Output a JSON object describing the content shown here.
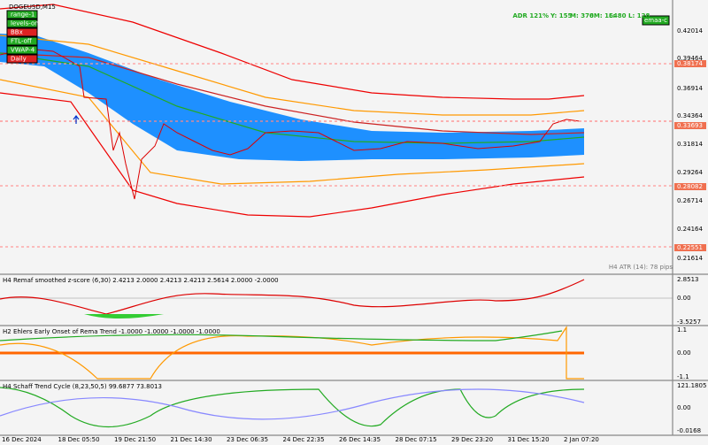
{
  "window": {
    "symbol": "DOGEUSD,M15"
  },
  "header": {
    "stats": [
      "ADR 121%",
      "Y: 155",
      "M: 370",
      "6M: 164",
      "L: 80",
      "L: 128"
    ],
    "right_button": "emaa-c"
  },
  "buttons": [
    "range-1",
    "levels-on",
    "BBx",
    "FTL-off",
    "VWAP-4",
    "Daily"
  ],
  "main_axis": {
    "labels": [
      "0.42014",
      "0.39464",
      "0.36914",
      "0.34364",
      "0.31814",
      "0.29264",
      "0.26714",
      "0.24164",
      "0.21614"
    ],
    "levels": [
      "0.38174",
      "0.33693",
      "0.28082",
      "0.22551"
    ],
    "atr": "H4 ATR (14): 78 pips"
  },
  "panels": [
    {
      "title": "H4 Remaf smoothed z-score (6,30) 2.4213 2.0000 2.4213 2.4213 2.5614 2.0000 -2.0000",
      "labels": [
        "2.8513",
        "0.00",
        "-3.5257"
      ]
    },
    {
      "title": "H2 Ehlers Early Onset of Rema Trend -1.0000 -1.0000 -1.0000 -1.0000",
      "labels": [
        "1.1",
        "0.00",
        "-1.1"
      ]
    },
    {
      "title": "H4 Schaff Trend Cycle (8,23,50,5) 99.6877 73.8013",
      "labels": [
        "121.1805",
        "0.00",
        "-0.0168"
      ]
    }
  ],
  "time_axis": [
    "16 Dec 2024",
    "18 Dec 05:50",
    "19 Dec 21:50",
    "21 Dec 14:30",
    "23 Dec 06:35",
    "24 Dec 22:35",
    "26 Dec 14:35",
    "28 Dec 07:15",
    "29 Dec 23:20",
    "31 Dec 15:20",
    "2 Jan 07:20"
  ]
}
